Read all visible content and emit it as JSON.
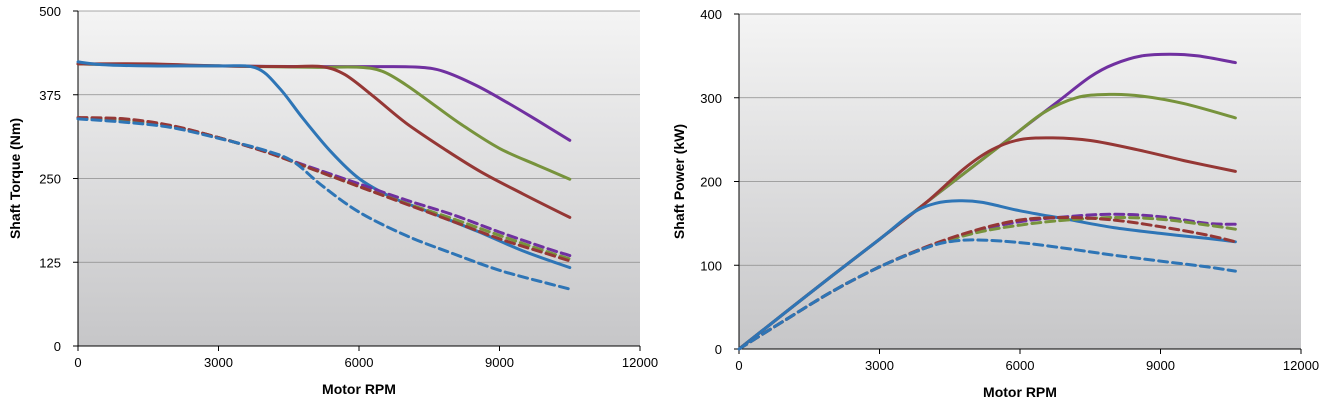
{
  "chart_data": [
    {
      "type": "line",
      "title": "",
      "xlabel": "Motor RPM",
      "ylabel": "Shaft Torque (Nm)",
      "xlim": [
        0,
        12000
      ],
      "ylim": [
        0,
        500
      ],
      "xticks": [
        0,
        3000,
        6000,
        9000,
        12000
      ],
      "yticks": [
        0,
        125,
        250,
        375,
        500
      ],
      "x_tick_labels": [
        "0",
        "3000",
        "6000",
        "9000",
        "12000"
      ],
      "y_tick_labels": [
        "0",
        "125",
        "250",
        "375",
        "500"
      ],
      "grid": "horizontal",
      "legend": "none",
      "series": [
        {
          "color": "#7030a0",
          "dash": false,
          "points": [
            [
              0,
              421
            ],
            [
              1500,
              419
            ],
            [
              3000,
              418
            ],
            [
              5000,
              417
            ],
            [
              6500,
              417
            ],
            [
              7300,
              416
            ],
            [
              7800,
              410
            ],
            [
              8500,
              389
            ],
            [
              9200,
              362
            ],
            [
              9800,
              337
            ],
            [
              10500,
              307
            ]
          ]
        },
        {
          "color": "#77933c",
          "dash": false,
          "points": [
            [
              0,
              421
            ],
            [
              1500,
              419
            ],
            [
              3000,
              418
            ],
            [
              5000,
              416
            ],
            [
              6000,
              416
            ],
            [
              6500,
              410
            ],
            [
              7000,
              390
            ],
            [
              7600,
              360
            ],
            [
              8200,
              330
            ],
            [
              9000,
              295
            ],
            [
              9800,
              270
            ],
            [
              10500,
              249
            ]
          ]
        },
        {
          "color": "#953735",
          "dash": false,
          "points": [
            [
              0,
              421
            ],
            [
              1500,
              421
            ],
            [
              3000,
              418
            ],
            [
              4500,
              417
            ],
            [
              5200,
              417
            ],
            [
              5700,
              405
            ],
            [
              6300,
              373
            ],
            [
              7000,
              333
            ],
            [
              7800,
              295
            ],
            [
              8600,
              260
            ],
            [
              9500,
              227
            ],
            [
              10500,
              192
            ]
          ]
        },
        {
          "color": "#2e75b6",
          "dash": false,
          "points": [
            [
              0,
              424
            ],
            [
              500,
              420
            ],
            [
              1500,
              418
            ],
            [
              3000,
              418
            ],
            [
              3800,
              415
            ],
            [
              4300,
              385
            ],
            [
              4800,
              340
            ],
            [
              5400,
              290
            ],
            [
              6000,
              250
            ],
            [
              6700,
              222
            ],
            [
              7500,
              200
            ],
            [
              8500,
              172
            ],
            [
              9500,
              142
            ],
            [
              10500,
              117
            ]
          ]
        },
        {
          "color": "#7030a0",
          "dash": true,
          "points": [
            [
              0,
              340
            ],
            [
              1000,
              337
            ],
            [
              2000,
              328
            ],
            [
              3000,
              311
            ],
            [
              4000,
              290
            ],
            [
              5000,
              266
            ],
            [
              6000,
              242
            ],
            [
              7000,
              218
            ],
            [
              8000,
              196
            ],
            [
              9000,
              170
            ],
            [
              10000,
              146
            ],
            [
              10500,
              135
            ]
          ]
        },
        {
          "color": "#77933c",
          "dash": true,
          "points": [
            [
              0,
              340
            ],
            [
              1000,
              337
            ],
            [
              2000,
              328
            ],
            [
              3000,
              311
            ],
            [
              4000,
              290
            ],
            [
              5000,
              264
            ],
            [
              6000,
              238
            ],
            [
              7000,
              213
            ],
            [
              8000,
              190
            ],
            [
              9000,
              165
            ],
            [
              10000,
              141
            ],
            [
              10500,
              130
            ]
          ]
        },
        {
          "color": "#953735",
          "dash": true,
          "points": [
            [
              0,
              341
            ],
            [
              1000,
              339
            ],
            [
              2000,
              329
            ],
            [
              3000,
              311
            ],
            [
              4000,
              290
            ],
            [
              5000,
              264
            ],
            [
              6000,
              238
            ],
            [
              7000,
              212
            ],
            [
              8000,
              186
            ],
            [
              9000,
              160
            ],
            [
              10000,
              138
            ],
            [
              10500,
              127
            ]
          ]
        },
        {
          "color": "#2e75b6",
          "dash": true,
          "points": [
            [
              0,
              339
            ],
            [
              1000,
              334
            ],
            [
              2000,
              326
            ],
            [
              3000,
              310
            ],
            [
              4000,
              292
            ],
            [
              4600,
              275
            ],
            [
              5200,
              240
            ],
            [
              6000,
              200
            ],
            [
              7000,
              165
            ],
            [
              8000,
              138
            ],
            [
              9000,
              113
            ],
            [
              10000,
              94
            ],
            [
              10500,
              85
            ]
          ]
        }
      ]
    },
    {
      "type": "line",
      "title": "",
      "xlabel": "Motor RPM",
      "ylabel": "Shaft Power (kW)",
      "xlim": [
        0,
        12000
      ],
      "ylim": [
        0,
        400
      ],
      "xticks": [
        0,
        3000,
        6000,
        9000,
        12000
      ],
      "yticks": [
        0,
        100,
        200,
        300,
        400
      ],
      "x_tick_labels": [
        "0",
        "3000",
        "6000",
        "9000",
        "12000"
      ],
      "y_tick_labels": [
        "0",
        "100",
        "200",
        "300",
        "400"
      ],
      "grid": "horizontal",
      "legend": "none",
      "series": [
        {
          "color": "#7030a0",
          "dash": false,
          "points": [
            [
              0,
              0
            ],
            [
              1000,
              44
            ],
            [
              2000,
              88
            ],
            [
              3000,
              131
            ],
            [
              4000,
              175
            ],
            [
              5000,
              218
            ],
            [
              6000,
              261
            ],
            [
              6800,
              295
            ],
            [
              7500,
              325
            ],
            [
              8000,
              340
            ],
            [
              8600,
              350
            ],
            [
              9200,
              352
            ],
            [
              9800,
              350
            ],
            [
              10600,
              342
            ]
          ]
        },
        {
          "color": "#77933c",
          "dash": false,
          "points": [
            [
              0,
              0
            ],
            [
              1000,
              44
            ],
            [
              2000,
              88
            ],
            [
              3000,
              131
            ],
            [
              4000,
              175
            ],
            [
              5000,
              218
            ],
            [
              5800,
              252
            ],
            [
              6500,
              282
            ],
            [
              7200,
              300
            ],
            [
              7900,
              304
            ],
            [
              8600,
              302
            ],
            [
              9500,
              293
            ],
            [
              10600,
              276
            ]
          ]
        },
        {
          "color": "#953735",
          "dash": false,
          "points": [
            [
              0,
              0
            ],
            [
              1000,
              44
            ],
            [
              2000,
              88
            ],
            [
              3000,
              131
            ],
            [
              4000,
              175
            ],
            [
              4800,
              215
            ],
            [
              5400,
              238
            ],
            [
              6000,
              250
            ],
            [
              6700,
              252
            ],
            [
              7500,
              249
            ],
            [
              8500,
              238
            ],
            [
              9500,
              225
            ],
            [
              10600,
              212
            ]
          ]
        },
        {
          "color": "#2e75b6",
          "dash": false,
          "points": [
            [
              0,
              0
            ],
            [
              1000,
              44
            ],
            [
              2000,
              88
            ],
            [
              3000,
              131
            ],
            [
              3700,
              162
            ],
            [
              4200,
              174
            ],
            [
              4700,
              177
            ],
            [
              5200,
              175
            ],
            [
              6000,
              165
            ],
            [
              7000,
              155
            ],
            [
              8000,
              145
            ],
            [
              9000,
              138
            ],
            [
              10000,
              132
            ],
            [
              10600,
              128
            ]
          ]
        },
        {
          "color": "#7030a0",
          "dash": true,
          "points": [
            [
              0,
              0
            ],
            [
              1000,
              35
            ],
            [
              2000,
              69
            ],
            [
              3000,
              98
            ],
            [
              4000,
              121
            ],
            [
              5000,
              140
            ],
            [
              6000,
              152
            ],
            [
              7000,
              158
            ],
            [
              8000,
              161
            ],
            [
              9000,
              158
            ],
            [
              10000,
              150
            ],
            [
              10600,
              149
            ]
          ]
        },
        {
          "color": "#77933c",
          "dash": true,
          "points": [
            [
              0,
              0
            ],
            [
              1000,
              35
            ],
            [
              2000,
              69
            ],
            [
              3000,
              98
            ],
            [
              4000,
              121
            ],
            [
              5000,
              138
            ],
            [
              6000,
              148
            ],
            [
              7000,
              154
            ],
            [
              8000,
              157
            ],
            [
              9000,
              155
            ],
            [
              10000,
              148
            ],
            [
              10600,
              143
            ]
          ]
        },
        {
          "color": "#953735",
          "dash": true,
          "points": [
            [
              0,
              0
            ],
            [
              1000,
              35
            ],
            [
              2000,
              69
            ],
            [
              3000,
              98
            ],
            [
              4000,
              122
            ],
            [
              5000,
              141
            ],
            [
              6000,
              154
            ],
            [
              7000,
              157
            ],
            [
              8000,
              154
            ],
            [
              9000,
              146
            ],
            [
              10000,
              136
            ],
            [
              10600,
              128
            ]
          ]
        },
        {
          "color": "#2e75b6",
          "dash": true,
          "points": [
            [
              0,
              0
            ],
            [
              1000,
              35
            ],
            [
              2000,
              69
            ],
            [
              3000,
              98
            ],
            [
              4000,
              121
            ],
            [
              4600,
              129
            ],
            [
              5200,
              130
            ],
            [
              6000,
              127
            ],
            [
              7000,
              120
            ],
            [
              8000,
              112
            ],
            [
              9000,
              105
            ],
            [
              10000,
              98
            ],
            [
              10600,
              93
            ]
          ]
        }
      ]
    }
  ]
}
